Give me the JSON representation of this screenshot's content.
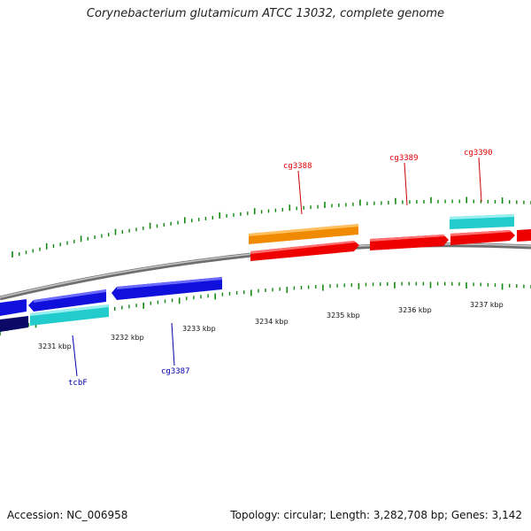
{
  "title": "Corynebacterium glutamicum ATCC 13032, complete genome",
  "footer": {
    "accession": "Accession: NC_006958",
    "summary": "Topology: circular; Length: 3,282,708 bp; Genes: 3,142"
  },
  "ticks": [
    {
      "label": "3231 kbp",
      "kbp": 3231
    },
    {
      "label": "3232 kbp",
      "kbp": 3232
    },
    {
      "label": "3233 kbp",
      "kbp": 3233
    },
    {
      "label": "3234 kbp",
      "kbp": 3234
    },
    {
      "label": "3235 kbp",
      "kbp": 3235
    },
    {
      "label": "3236 kbp",
      "kbp": 3236
    },
    {
      "label": "3237 kbp",
      "kbp": 3237
    }
  ],
  "gene_labels": [
    {
      "name": "cg3388",
      "color": "#dd0000"
    },
    {
      "name": "cg3389",
      "color": "#dd0000"
    },
    {
      "name": "cg3390",
      "color": "#dd0000"
    },
    {
      "name": "tcbF",
      "color": "#0000aa"
    },
    {
      "name": "cg3387",
      "color": "#0000aa"
    }
  ],
  "colors": {
    "backbone": "#888888",
    "tick": "#118811",
    "forward_gene": "#ee0000",
    "reverse_gene": "#1010dd",
    "orange_gene": "#f08a00",
    "cyan_gene": "#22cccc",
    "navy_gene": "#0a0a66"
  }
}
